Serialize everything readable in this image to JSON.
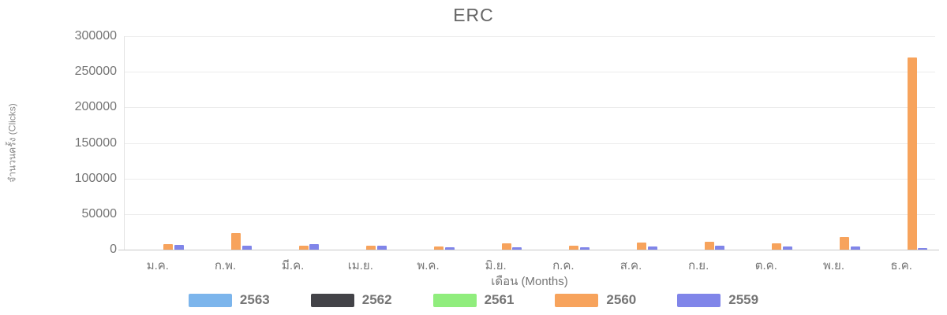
{
  "chart_data": {
    "type": "bar",
    "title": "ERC",
    "xlabel": "เดือน (Months)",
    "ylabel": "จำนวนครั้ง (Clicks)",
    "categories": [
      "ม.ค.",
      "ก.พ.",
      "มี.ค.",
      "เม.ย.",
      "พ.ค.",
      "มิ.ย.",
      "ก.ค.",
      "ส.ค.",
      "ก.ย.",
      "ต.ค.",
      "พ.ย.",
      "ธ.ค."
    ],
    "series": [
      {
        "name": "2563",
        "color": "#7cb5ec",
        "values": [
          0,
          0,
          0,
          0,
          0,
          0,
          0,
          0,
          0,
          0,
          0,
          0
        ]
      },
      {
        "name": "2562",
        "color": "#434348",
        "values": [
          0,
          0,
          0,
          0,
          0,
          0,
          0,
          0,
          0,
          0,
          0,
          0
        ]
      },
      {
        "name": "2561",
        "color": "#90ed7d",
        "values": [
          0,
          0,
          0,
          0,
          0,
          0,
          0,
          0,
          0,
          0,
          0,
          0
        ]
      },
      {
        "name": "2560",
        "color": "#f7a35c",
        "values": [
          8000,
          23000,
          5500,
          5000,
          4500,
          8500,
          5000,
          9500,
          11000,
          9000,
          18000,
          270000
        ]
      },
      {
        "name": "2559",
        "color": "#8085e9",
        "values": [
          7000,
          5500,
          7500,
          5500,
          3000,
          2800,
          3200,
          4500,
          5500,
          4200,
          4200,
          2200
        ]
      }
    ],
    "ylim": [
      0,
      300000
    ],
    "yticks": [
      0,
      50000,
      100000,
      150000,
      200000,
      250000,
      300000
    ],
    "grid": true,
    "legend_position": "bottom",
    "grid_color": "#ececec",
    "axis_line_color": "#c9c9c9",
    "title_color": "#666666",
    "label_color": "#757575"
  }
}
